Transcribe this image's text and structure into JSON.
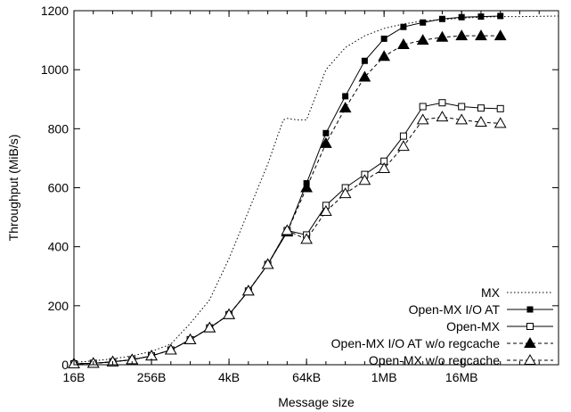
{
  "chart_data": {
    "type": "line",
    "xlabel": "Message size",
    "ylabel": "Throughput (MiB/s)",
    "x_scale": "log2",
    "xlim": [
      0,
      25
    ],
    "ylim": [
      0,
      1200
    ],
    "x_ticks": [
      {
        "x": 0,
        "label": "16B"
      },
      {
        "x": 4,
        "label": "256B"
      },
      {
        "x": 8,
        "label": "4kB"
      },
      {
        "x": 12,
        "label": "64kB"
      },
      {
        "x": 16,
        "label": "1MB"
      },
      {
        "x": 20,
        "label": "16MB"
      }
    ],
    "y_ticks": [
      0,
      200,
      400,
      600,
      800,
      1000,
      1200
    ],
    "grid": false,
    "legend_position": "bottom-right",
    "series": [
      {
        "name": "MX",
        "style": "dotted",
        "marker": "none",
        "x": [
          0,
          1,
          2,
          3,
          4,
          5,
          6,
          7,
          8,
          9,
          10,
          10.8,
          11,
          11.5,
          12,
          13,
          14,
          15,
          16,
          17,
          18,
          19,
          20,
          21,
          22,
          23,
          24,
          25
        ],
        "y": [
          8,
          13,
          20,
          30,
          45,
          70,
          140,
          220,
          360,
          520,
          680,
          830,
          835,
          830,
          830,
          1000,
          1075,
          1115,
          1140,
          1155,
          1165,
          1170,
          1175,
          1178,
          1180,
          1180,
          1181,
          1182
        ]
      },
      {
        "name": "Open-MX I/O AT",
        "style": "solid",
        "marker": "filled-square",
        "x": [
          0,
          1,
          2,
          3,
          4,
          5,
          6,
          7,
          8,
          9,
          10,
          11,
          12,
          13,
          14,
          15,
          16,
          17,
          18,
          19,
          20,
          21,
          22
        ],
        "y": [
          3,
          5,
          10,
          17,
          30,
          50,
          85,
          125,
          170,
          250,
          340,
          450,
          615,
          785,
          910,
          1030,
          1105,
          1145,
          1160,
          1172,
          1178,
          1180,
          1182
        ]
      },
      {
        "name": "Open-MX",
        "style": "solid",
        "marker": "open-square",
        "x": [
          0,
          1,
          2,
          3,
          4,
          5,
          6,
          7,
          8,
          9,
          10,
          11,
          12,
          13,
          14,
          15,
          16,
          17,
          18,
          19,
          20,
          21,
          22
        ],
        "y": [
          3,
          5,
          10,
          17,
          30,
          50,
          85,
          125,
          170,
          250,
          340,
          455,
          440,
          540,
          600,
          645,
          690,
          775,
          875,
          888,
          875,
          870,
          868
        ]
      },
      {
        "name": "Open-MX I/O AT w/o regcache",
        "style": "dashed",
        "marker": "filled-triangle",
        "x": [
          0,
          1,
          2,
          3,
          4,
          5,
          6,
          7,
          8,
          9,
          10,
          11,
          12,
          13,
          14,
          15,
          16,
          17,
          18,
          19,
          20,
          21,
          22
        ],
        "y": [
          3,
          5,
          10,
          17,
          30,
          50,
          85,
          125,
          170,
          250,
          340,
          450,
          600,
          750,
          870,
          975,
          1045,
          1085,
          1100,
          1110,
          1115,
          1115,
          1115
        ]
      },
      {
        "name": "Open-MX w/o regcache",
        "style": "dashed",
        "marker": "open-triangle",
        "x": [
          0,
          1,
          2,
          3,
          4,
          5,
          6,
          7,
          8,
          9,
          10,
          11,
          12,
          13,
          14,
          15,
          16,
          17,
          18,
          19,
          20,
          21,
          22
        ],
        "y": [
          3,
          5,
          10,
          17,
          30,
          50,
          85,
          125,
          170,
          250,
          340,
          455,
          425,
          520,
          580,
          625,
          665,
          740,
          830,
          840,
          830,
          822,
          818
        ]
      }
    ]
  }
}
